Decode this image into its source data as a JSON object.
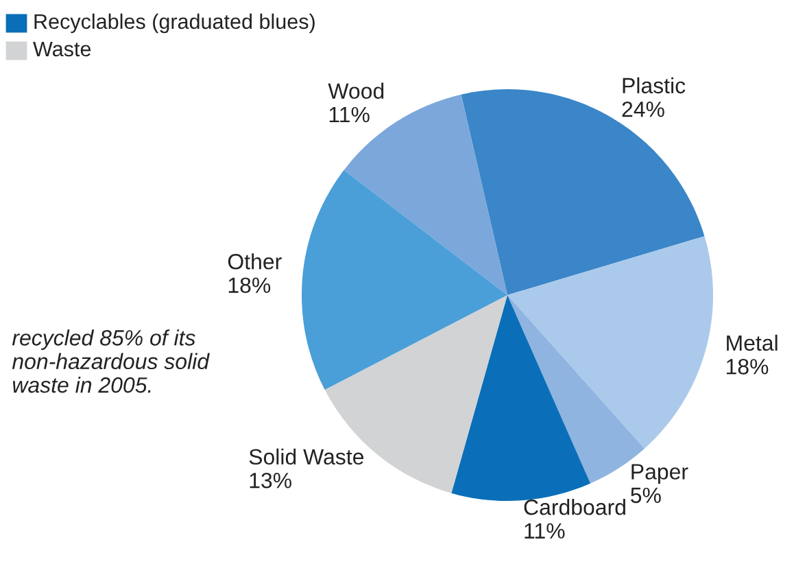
{
  "chart_data": {
    "type": "pie",
    "categories": [
      "Plastic",
      "Metal",
      "Paper",
      "Cardboard",
      "Solid Waste",
      "Other",
      "Wood"
    ],
    "values": [
      24,
      18,
      5,
      11,
      13,
      18,
      11
    ],
    "value_labels": [
      "24%",
      "18%",
      "5%",
      "11%",
      "13%",
      "18%",
      "11%"
    ],
    "colors": [
      "#3a86c8",
      "#abc9eb",
      "#8fb4e0",
      "#0a6fb8",
      "#d2d3d5",
      "#4a9fd8",
      "#7ba7db"
    ],
    "annotations": [
      "Recyclables (graduated blues)",
      "Waste",
      "recycled 85% of its\nnon-hazardous solid\nwaste in 2005."
    ]
  }
}
